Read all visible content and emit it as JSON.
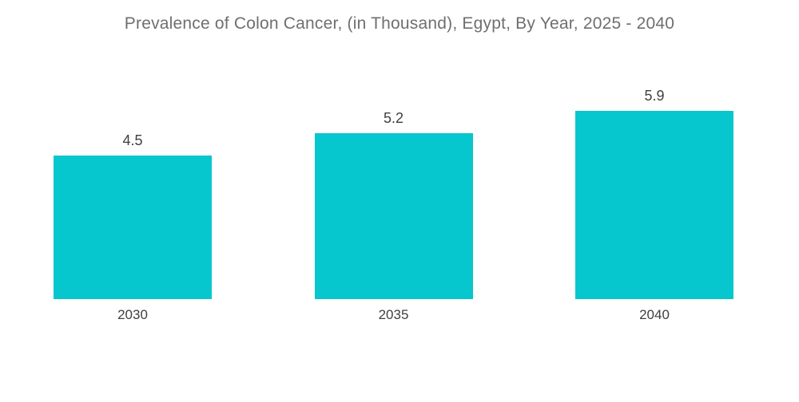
{
  "chart_data": {
    "type": "bar",
    "title": "Prevalence of Colon Cancer, (in Thousand), Egypt, By Year, 2025 - 2040",
    "categories": [
      "2030",
      "2035",
      "2040"
    ],
    "values": [
      4.5,
      5.2,
      5.9
    ],
    "value_labels": [
      "4.5",
      "5.2",
      "5.9"
    ],
    "xlabel": "",
    "ylabel": "",
    "ylim": [
      0,
      6.5
    ],
    "grid": false,
    "legend": "none",
    "data_labels_position": "above-bar",
    "colors": {
      "bar_fill": "#06C6CE",
      "title_text": "#6F6F6F",
      "label_text": "#3F3F3F",
      "background": "#FFFFFF"
    }
  }
}
